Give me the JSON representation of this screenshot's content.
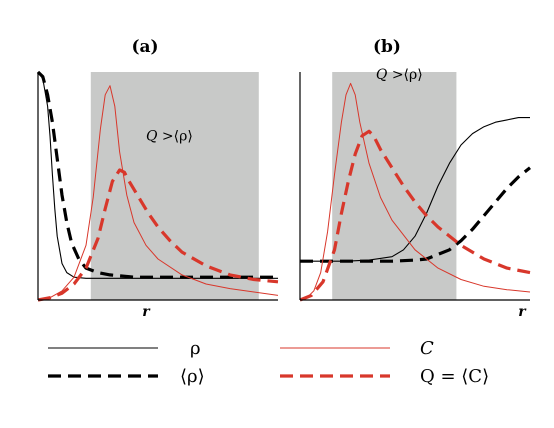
{
  "chart_data": [
    {
      "type": "line",
      "panel_label": "(a)",
      "xlabel": "r",
      "ylabel": "",
      "xlim": [
        0,
        1
      ],
      "ylim": [
        0,
        1
      ],
      "shaded_region": {
        "x": [
          0.22,
          0.92
        ],
        "color": "#c8c9c8"
      },
      "annotation": {
        "text_symbol": "Q",
        "text_rest": " >⟨ρ⟩",
        "x": 0.45,
        "y": 0.7
      },
      "series": [
        {
          "key": "rho",
          "style": "thin-black",
          "x": [
            0.0,
            0.02,
            0.04,
            0.05,
            0.06,
            0.07,
            0.08,
            0.1,
            0.12,
            0.15,
            0.2,
            0.3,
            0.5,
            0.7,
            1.0
          ],
          "y": [
            1.0,
            0.97,
            0.85,
            0.72,
            0.55,
            0.4,
            0.28,
            0.16,
            0.12,
            0.1,
            0.095,
            0.095,
            0.095,
            0.095,
            0.095
          ]
        },
        {
          "key": "rho_avg",
          "style": "thick-black-dashed",
          "x": [
            0.0,
            0.02,
            0.04,
            0.06,
            0.08,
            0.1,
            0.12,
            0.14,
            0.17,
            0.2,
            0.25,
            0.3,
            0.4,
            0.6,
            0.8,
            1.0
          ],
          "y": [
            1.0,
            0.98,
            0.9,
            0.78,
            0.62,
            0.46,
            0.34,
            0.25,
            0.18,
            0.14,
            0.12,
            0.11,
            0.1,
            0.1,
            0.1,
            0.1
          ]
        },
        {
          "key": "C",
          "style": "thin-red",
          "x": [
            0.0,
            0.05,
            0.1,
            0.15,
            0.2,
            0.23,
            0.26,
            0.28,
            0.3,
            0.32,
            0.34,
            0.37,
            0.4,
            0.45,
            0.5,
            0.6,
            0.7,
            0.8,
            0.9,
            1.0
          ],
          "y": [
            0.0,
            0.01,
            0.04,
            0.1,
            0.24,
            0.45,
            0.75,
            0.9,
            0.94,
            0.85,
            0.65,
            0.46,
            0.34,
            0.24,
            0.18,
            0.11,
            0.07,
            0.05,
            0.035,
            0.02
          ]
        },
        {
          "key": "Q",
          "style": "thick-red-dashed",
          "x": [
            0.0,
            0.05,
            0.1,
            0.15,
            0.2,
            0.25,
            0.28,
            0.31,
            0.34,
            0.36,
            0.38,
            0.42,
            0.46,
            0.5,
            0.55,
            0.6,
            0.7,
            0.8,
            0.9,
            1.0
          ],
          "y": [
            0.0,
            0.01,
            0.03,
            0.07,
            0.14,
            0.27,
            0.4,
            0.52,
            0.57,
            0.56,
            0.52,
            0.45,
            0.38,
            0.32,
            0.26,
            0.21,
            0.15,
            0.11,
            0.09,
            0.08
          ]
        }
      ]
    },
    {
      "type": "line",
      "panel_label": "(b)",
      "xlabel": "r",
      "ylabel": "",
      "xlim": [
        0,
        1
      ],
      "ylim": [
        0,
        1
      ],
      "shaded_region": {
        "x": [
          0.14,
          0.68
        ],
        "color": "#c8c9c8"
      },
      "annotation": {
        "text_symbol": "Q",
        "text_rest": " >⟨ρ⟩",
        "x": 0.33,
        "y": 0.97
      },
      "series": [
        {
          "key": "rho",
          "style": "thin-black",
          "x": [
            0.0,
            0.2,
            0.3,
            0.4,
            0.45,
            0.5,
            0.55,
            0.6,
            0.65,
            0.7,
            0.75,
            0.8,
            0.85,
            0.9,
            0.95,
            1.0
          ],
          "y": [
            0.17,
            0.17,
            0.175,
            0.19,
            0.22,
            0.28,
            0.38,
            0.5,
            0.6,
            0.68,
            0.73,
            0.76,
            0.78,
            0.79,
            0.8,
            0.8
          ]
        },
        {
          "key": "rho_avg",
          "style": "thick-black-dashed",
          "x": [
            0.0,
            0.3,
            0.4,
            0.5,
            0.55,
            0.6,
            0.65,
            0.7,
            0.75,
            0.8,
            0.85,
            0.9,
            0.95,
            1.0
          ],
          "y": [
            0.17,
            0.17,
            0.17,
            0.175,
            0.18,
            0.2,
            0.22,
            0.26,
            0.31,
            0.37,
            0.43,
            0.49,
            0.54,
            0.58
          ]
        },
        {
          "key": "C",
          "style": "thin-red",
          "x": [
            0.0,
            0.03,
            0.06,
            0.09,
            0.12,
            0.15,
            0.18,
            0.2,
            0.22,
            0.24,
            0.26,
            0.3,
            0.35,
            0.4,
            0.5,
            0.6,
            0.7,
            0.8,
            0.9,
            1.0
          ],
          "y": [
            0.0,
            0.01,
            0.04,
            0.12,
            0.3,
            0.55,
            0.78,
            0.9,
            0.95,
            0.9,
            0.78,
            0.6,
            0.45,
            0.35,
            0.22,
            0.14,
            0.09,
            0.06,
            0.045,
            0.035
          ]
        },
        {
          "key": "Q",
          "style": "thick-red-dashed",
          "x": [
            0.0,
            0.05,
            0.1,
            0.15,
            0.18,
            0.21,
            0.24,
            0.27,
            0.3,
            0.32,
            0.35,
            0.4,
            0.45,
            0.5,
            0.55,
            0.6,
            0.7,
            0.8,
            0.9,
            1.0
          ],
          "y": [
            0.0,
            0.02,
            0.08,
            0.22,
            0.38,
            0.52,
            0.64,
            0.72,
            0.74,
            0.72,
            0.66,
            0.58,
            0.5,
            0.43,
            0.37,
            0.32,
            0.24,
            0.18,
            0.14,
            0.12
          ]
        }
      ]
    }
  ],
  "legend": {
    "placement": "bottom",
    "items": [
      {
        "key": "rho",
        "style": "thin-black",
        "label": "ρ"
      },
      {
        "key": "C",
        "style": "thin-red",
        "label": "C"
      },
      {
        "key": "rho_avg",
        "style": "thick-black-dashed",
        "label": "⟨ρ⟩"
      },
      {
        "key": "Q",
        "style": "thick-red-dashed",
        "label": "Q = ⟨C⟩"
      }
    ]
  },
  "colors": {
    "black": "#000000",
    "red": "#d8372b",
    "shade": "#c8c9c8"
  }
}
